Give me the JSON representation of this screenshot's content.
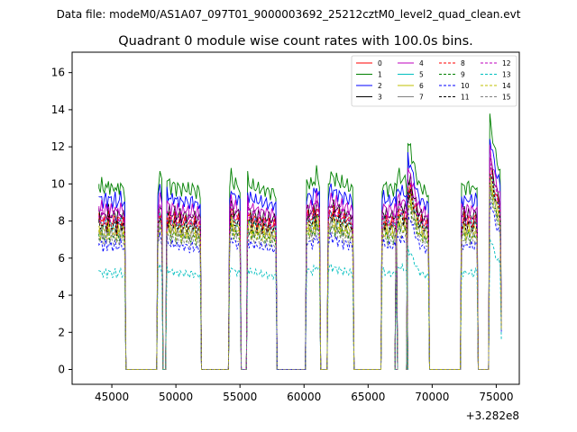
{
  "header": {
    "data_file": "Data file: modeM0/AS1A07_097T01_9000003692_25212cztM0_level2_quad_clean.evt"
  },
  "chart_data": {
    "type": "line",
    "title": "Quadrant 0 module wise count rates with 100.0s bins.",
    "xlabel": "",
    "ylabel": "",
    "x_offset_label": "+3.282e8",
    "xlim": [
      41900,
      76800
    ],
    "ylim": [
      -0.8,
      17.1
    ],
    "x_ticks": [
      45000,
      50000,
      55000,
      60000,
      65000,
      70000,
      75000
    ],
    "y_ticks": [
      0,
      2,
      4,
      6,
      8,
      10,
      12,
      14,
      16
    ],
    "grid": false,
    "legend_position": "top-right",
    "bin_seconds": 100.0,
    "segments": [
      {
        "start": 44000,
        "end": 46000,
        "shape": [
          1.0,
          0.97,
          1.01,
          0.96,
          0.98,
          1.0,
          0.95,
          1.02,
          0.97,
          0.99,
          0.96,
          0.98,
          1.0,
          0.94,
          0.99,
          0.97,
          1.01,
          0.96,
          0.98,
          0.95
        ]
      },
      {
        "start": 48600,
        "end": 48900,
        "shape": [
          0.98,
          1.06,
          1.0
        ]
      },
      {
        "start": 49300,
        "end": 51900,
        "shape": [
          1.03,
          0.99,
          1.02,
          0.97,
          1.0,
          0.98,
          1.01,
          0.96,
          0.99,
          0.97,
          1.0,
          0.95,
          0.98,
          0.97,
          0.99,
          0.96,
          0.98,
          0.95,
          0.97,
          0.99,
          0.96,
          0.98,
          0.94,
          0.97,
          0.96,
          0.95
        ]
      },
      {
        "start": 54200,
        "end": 55000,
        "shape": [
          0.97,
          1.06,
          1.02,
          0.99,
          1.01,
          0.98,
          1.0,
          0.96
        ]
      },
      {
        "start": 55600,
        "end": 57800,
        "shape": [
          1.04,
          0.99,
          1.01,
          0.97,
          1.0,
          0.98,
          0.99,
          0.96,
          0.99,
          0.97,
          0.98,
          0.95,
          0.98,
          0.96,
          0.97,
          0.95,
          0.97,
          0.94,
          0.96,
          0.95,
          0.96,
          0.94
        ]
      },
      {
        "start": 60200,
        "end": 61200,
        "shape": [
          1.0,
          1.02,
          0.99,
          1.01,
          0.98,
          1.04,
          1.0,
          1.07,
          1.03,
          1.01
        ]
      },
      {
        "start": 61900,
        "end": 63800,
        "shape": [
          1.0,
          1.03,
          1.06,
          1.02,
          1.05,
          1.01,
          1.04,
          1.0,
          1.03,
          0.99,
          1.02,
          0.98,
          1.01,
          0.99,
          1.0,
          0.97,
          0.99,
          0.98,
          0.96
        ]
      },
      {
        "start": 66100,
        "end": 67200,
        "shape": [
          0.98,
          1.01,
          0.97,
          1.0,
          0.96,
          0.99,
          0.97,
          0.98,
          0.96,
          0.99,
          0.97
        ]
      },
      {
        "start": 67200,
        "end": 68000,
        "shape": [
          1.0,
          1.03,
          1.06,
          1.02,
          1.04,
          1.01,
          1.03,
          1.0
        ]
      },
      {
        "start": 68100,
        "end": 69700,
        "shape": [
          1.23,
          1.18,
          1.21,
          1.14,
          1.12,
          1.08,
          1.06,
          1.02,
          1.0,
          0.98,
          0.99,
          0.96,
          0.97,
          0.95,
          0.96,
          0.94
        ]
      },
      {
        "start": 72300,
        "end": 73500,
        "shape": [
          0.99,
          0.97,
          1.01,
          0.96,
          0.98,
          1.0,
          0.97,
          0.99,
          0.96,
          0.98,
          1.0,
          0.97
        ]
      },
      {
        "start": 74500,
        "end": 75300,
        "shape": [
          1.35,
          1.3,
          1.25,
          1.2,
          1.16,
          1.12,
          1.1,
          1.06
        ]
      }
    ],
    "segment_end_drop": {
      "x": 75400,
      "factor": 0.3
    },
    "series": [
      {
        "name": "0",
        "color": "#ff0000",
        "dash": false,
        "base": 8.2
      },
      {
        "name": "1",
        "color": "#008000",
        "dash": false,
        "base": 10.0
      },
      {
        "name": "2",
        "color": "#0000ff",
        "dash": false,
        "base": 9.3
      },
      {
        "name": "3",
        "color": "#000000",
        "dash": false,
        "base": 8.5
      },
      {
        "name": "4",
        "color": "#bf00bf",
        "dash": false,
        "base": 8.8
      },
      {
        "name": "5",
        "color": "#00bfbf",
        "dash": false,
        "base": 8.0
      },
      {
        "name": "6",
        "color": "#bfbf00",
        "dash": false,
        "base": 7.7
      },
      {
        "name": "7",
        "color": "#808080",
        "dash": false,
        "base": 7.5
      },
      {
        "name": "8",
        "color": "#ff0000",
        "dash": true,
        "base": 8.0
      },
      {
        "name": "9",
        "color": "#008000",
        "dash": true,
        "base": 7.3
      },
      {
        "name": "10",
        "color": "#0000ff",
        "dash": true,
        "base": 6.8
      },
      {
        "name": "11",
        "color": "#000000",
        "dash": true,
        "base": 7.9
      },
      {
        "name": "12",
        "color": "#bf00bf",
        "dash": true,
        "base": 8.3
      },
      {
        "name": "13",
        "color": "#00bfbf",
        "dash": true,
        "base": 5.3
      },
      {
        "name": "14",
        "color": "#bfbf00",
        "dash": true,
        "base": 7.4
      },
      {
        "name": "15",
        "color": "#808080",
        "dash": true,
        "base": 7.1
      }
    ]
  }
}
